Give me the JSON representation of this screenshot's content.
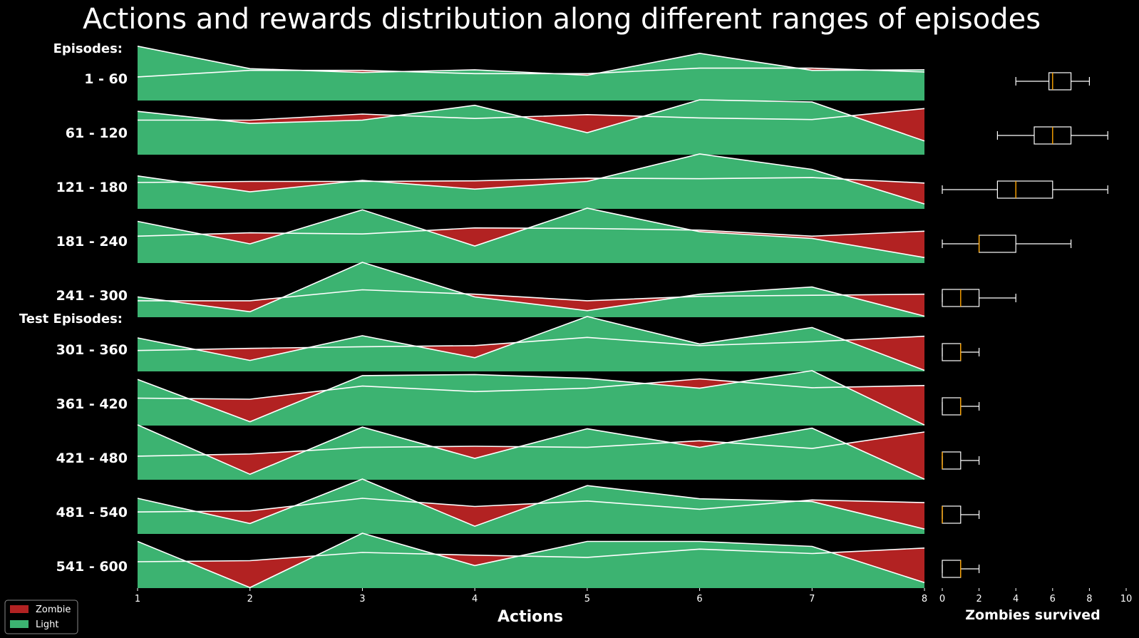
{
  "chart_data": {
    "type": "area",
    "title": "Actions and rewards distribution along different ranges of episodes",
    "xlabel": "Actions",
    "x": [
      1,
      2,
      3,
      4,
      5,
      6,
      7,
      8
    ],
    "xlim": [
      1,
      8
    ],
    "section_labels": [
      "Episodes:",
      "Test Episodes:"
    ],
    "legend": {
      "placement": "bottom-left",
      "entries": [
        "Zombie",
        "Light"
      ]
    },
    "colors": {
      "Zombie": "#b22222",
      "Light": "#3cb371",
      "line": "#ffffff",
      "median": "#ffa500"
    },
    "rows": [
      {
        "label": "1 - 60",
        "zombie": [
          0.43,
          0.55,
          0.55,
          0.49,
          0.49,
          0.59,
          0.59,
          0.52
        ],
        "light": [
          0.99,
          0.58,
          0.51,
          0.56,
          0.46,
          0.86,
          0.55,
          0.56
        ]
      },
      {
        "label": "61 - 120",
        "zombie": [
          0.63,
          0.63,
          0.74,
          0.66,
          0.73,
          0.67,
          0.64,
          0.84
        ],
        "light": [
          0.79,
          0.57,
          0.63,
          0.9,
          0.4,
          1.0,
          0.96,
          0.25
        ]
      },
      {
        "label": "121 - 180",
        "zombie": [
          0.48,
          0.5,
          0.5,
          0.51,
          0.56,
          0.55,
          0.57,
          0.47
        ],
        "light": [
          0.6,
          0.31,
          0.52,
          0.36,
          0.5,
          1.0,
          0.72,
          0.09
        ]
      },
      {
        "label": "181 - 240",
        "zombie": [
          0.49,
          0.55,
          0.53,
          0.64,
          0.63,
          0.6,
          0.49,
          0.58
        ],
        "light": [
          0.76,
          0.35,
          0.97,
          0.31,
          1.0,
          0.57,
          0.45,
          0.1
        ]
      },
      {
        "label": "241 - 300",
        "zombie": [
          0.3,
          0.3,
          0.5,
          0.42,
          0.3,
          0.38,
          0.4,
          0.42
        ],
        "light": [
          0.37,
          0.1,
          1.0,
          0.37,
          0.12,
          0.42,
          0.55,
          0.02
        ]
      },
      {
        "label": "301 - 360",
        "zombie": [
          0.38,
          0.42,
          0.45,
          0.47,
          0.62,
          0.47,
          0.54,
          0.64
        ],
        "light": [
          0.61,
          0.2,
          0.65,
          0.25,
          1.0,
          0.5,
          0.8,
          0.02
        ]
      },
      {
        "label": "361 - 420",
        "zombie": [
          0.5,
          0.48,
          0.72,
          0.62,
          0.68,
          0.85,
          0.69,
          0.73
        ],
        "light": [
          0.84,
          0.07,
          0.91,
          0.93,
          0.86,
          0.68,
          1.0,
          0.01
        ]
      },
      {
        "label": "421 - 480",
        "zombie": [
          0.43,
          0.47,
          0.59,
          0.61,
          0.59,
          0.71,
          0.57,
          0.87
        ],
        "light": [
          1.0,
          0.1,
          0.96,
          0.39,
          0.93,
          0.59,
          0.94,
          0.01
        ]
      },
      {
        "label": "481 - 540",
        "zombie": [
          0.4,
          0.42,
          0.65,
          0.5,
          0.6,
          0.45,
          0.62,
          0.57
        ],
        "light": [
          0.65,
          0.19,
          1.0,
          0.14,
          0.88,
          0.64,
          0.59,
          0.09
        ]
      },
      {
        "label": "541 - 600",
        "zombie": [
          0.48,
          0.5,
          0.65,
          0.6,
          0.56,
          0.71,
          0.63,
          0.73
        ],
        "light": [
          0.85,
          0.01,
          1.0,
          0.41,
          0.85,
          0.85,
          0.76,
          0.1
        ]
      }
    ],
    "boxplot": {
      "xlabel": "Zombies survived",
      "xlim": [
        0,
        10
      ],
      "ticks": [
        "0",
        "2",
        "4",
        "6",
        "8",
        "10"
      ],
      "stats": [
        {
          "whislo": 4,
          "q1": 5.8,
          "med": 6,
          "q3": 7,
          "whishi": 8
        },
        {
          "whislo": 3,
          "q1": 5,
          "med": 6,
          "q3": 7,
          "whishi": 9
        },
        {
          "whislo": 0,
          "q1": 3,
          "med": 4,
          "q3": 6,
          "whishi": 9
        },
        {
          "whislo": 0,
          "q1": 2,
          "med": 2,
          "q3": 4,
          "whishi": 7
        },
        {
          "whislo": 0,
          "q1": 0,
          "med": 1,
          "q3": 2,
          "whishi": 4
        },
        {
          "whislo": 0,
          "q1": 0,
          "med": 1,
          "q3": 1,
          "whishi": 2
        },
        {
          "whislo": 0,
          "q1": 0,
          "med": 1,
          "q3": 1,
          "whishi": 2
        },
        {
          "whislo": 0,
          "q1": 0,
          "med": 0,
          "q3": 1,
          "whishi": 2
        },
        {
          "whislo": 0,
          "q1": 0,
          "med": 0,
          "q3": 1,
          "whishi": 2
        },
        {
          "whislo": 0,
          "q1": 0,
          "med": 1,
          "q3": 1,
          "whishi": 2
        }
      ]
    }
  }
}
